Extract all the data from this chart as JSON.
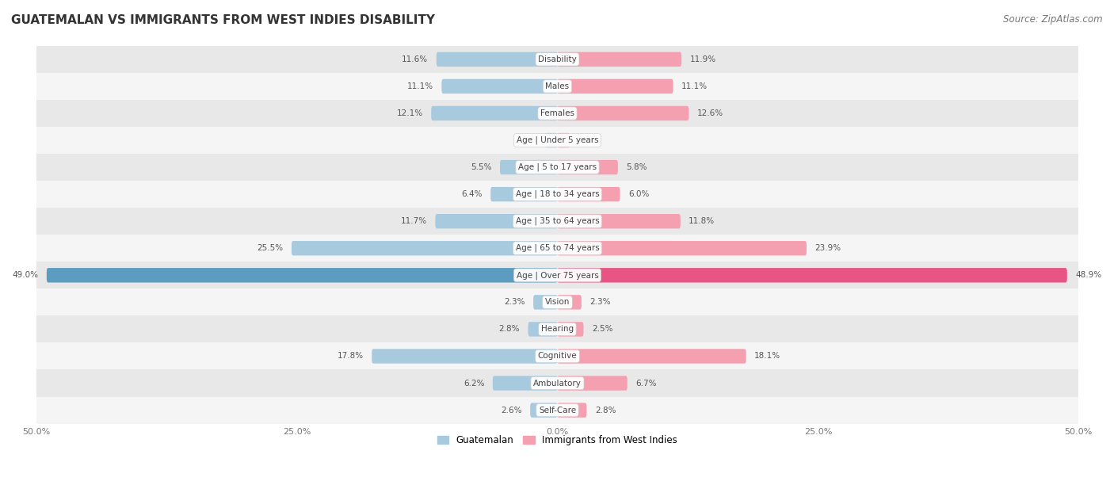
{
  "title": "GUATEMALAN VS IMMIGRANTS FROM WEST INDIES DISABILITY",
  "source": "Source: ZipAtlas.com",
  "categories": [
    "Disability",
    "Males",
    "Females",
    "Age | Under 5 years",
    "Age | 5 to 17 years",
    "Age | 18 to 34 years",
    "Age | 35 to 64 years",
    "Age | 65 to 74 years",
    "Age | Over 75 years",
    "Vision",
    "Hearing",
    "Cognitive",
    "Ambulatory",
    "Self-Care"
  ],
  "guatemalan": [
    11.6,
    11.1,
    12.1,
    1.2,
    5.5,
    6.4,
    11.7,
    25.5,
    49.0,
    2.3,
    2.8,
    17.8,
    6.2,
    2.6
  ],
  "west_indies": [
    11.9,
    11.1,
    12.6,
    1.2,
    5.8,
    6.0,
    11.8,
    23.9,
    48.9,
    2.3,
    2.5,
    18.1,
    6.7,
    2.8
  ],
  "blue_colors": [
    "#A8CADF",
    "#A8CADF",
    "#A8CADF",
    "#A8CADF",
    "#A8CADF",
    "#A8CADF",
    "#A8CADF",
    "#A8CADF",
    "#5B9CC0",
    "#A8CADF",
    "#A8CADF",
    "#A8CADF",
    "#A8CADF",
    "#A8CADF"
  ],
  "pink_colors": [
    "#F4A0B0",
    "#F4A0B0",
    "#F4A0B0",
    "#F4A0B0",
    "#F4A0B0",
    "#F4A0B0",
    "#F4A0B0",
    "#F4A0B0",
    "#E85585",
    "#F4A0B0",
    "#F4A0B0",
    "#F4A0B0",
    "#F4A0B0",
    "#F4A0B0"
  ],
  "legend_blue": "#A8CADF",
  "legend_pink": "#F4A0B0",
  "bar_height": 0.52,
  "xlim": 50.0,
  "background_color": "#ffffff",
  "row_colors": [
    "#e8e8e8",
    "#f5f5f5",
    "#e8e8e8",
    "#f5f5f5",
    "#e8e8e8",
    "#f5f5f5",
    "#e8e8e8",
    "#f5f5f5",
    "#e8e8e8",
    "#f5f5f5",
    "#e8e8e8",
    "#f5f5f5",
    "#e8e8e8",
    "#f5f5f5"
  ],
  "title_fontsize": 11,
  "source_fontsize": 8.5,
  "label_fontsize": 7.5,
  "value_fontsize": 7.5,
  "tick_fontsize": 8,
  "legend_fontsize": 8.5
}
